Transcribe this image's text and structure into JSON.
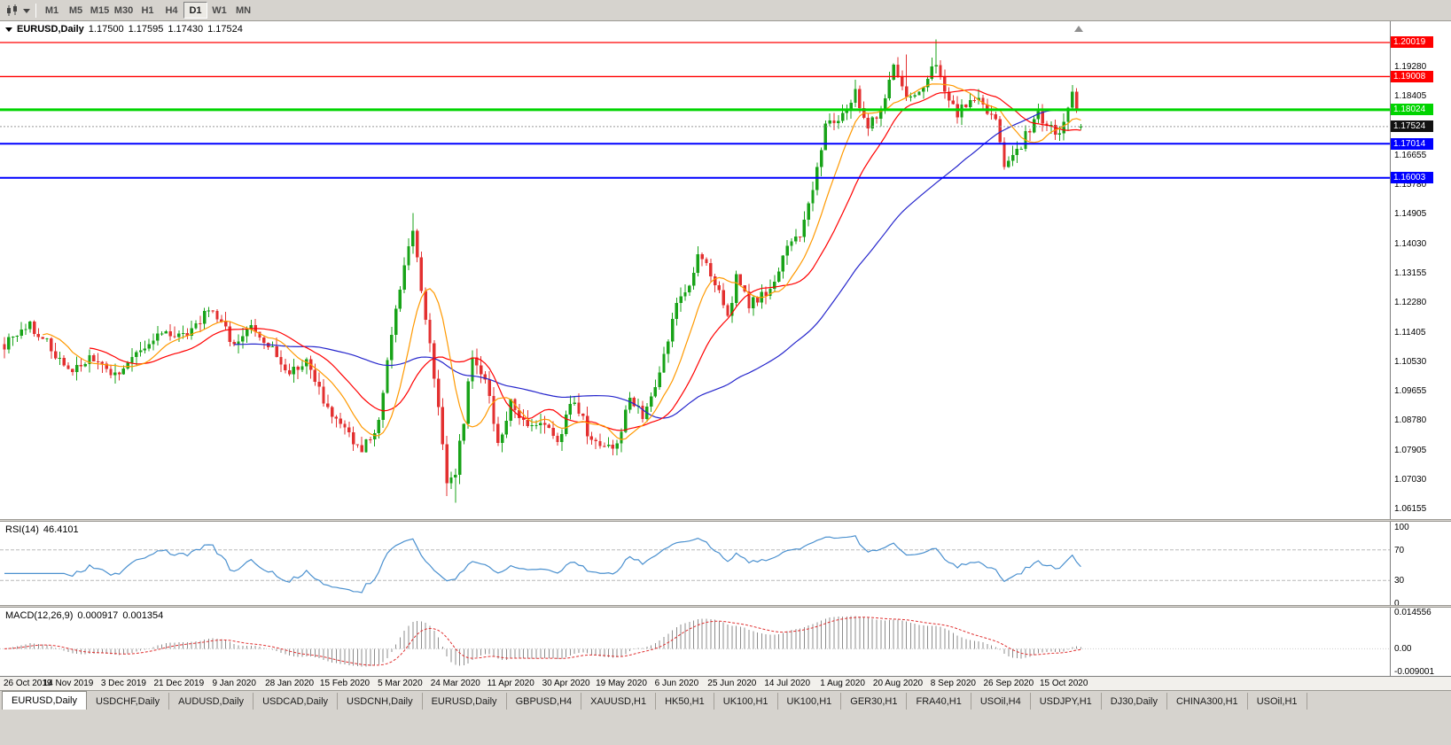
{
  "toolbar": {
    "timeframes": [
      "M1",
      "M5",
      "M15",
      "M30",
      "H1",
      "H4",
      "D1",
      "W1",
      "MN"
    ],
    "active_timeframe": "D1"
  },
  "main_chart": {
    "symbol": "EURUSD,Daily",
    "open": "1.17500",
    "high": "1.17595",
    "low": "1.17430",
    "close": "1.17524",
    "candle_colors": {
      "bull": "#18a318",
      "bear": "#e33030"
    },
    "moving_averages": [
      {
        "period": 55,
        "color": "#2525cc"
      },
      {
        "period": 21,
        "color": "#ff0000"
      },
      {
        "period": 10,
        "color": "#ff9900"
      }
    ],
    "levels": [
      {
        "value": 1.20019,
        "label": "1.20019",
        "color": "#ff0000",
        "width": 1.3
      },
      {
        "value": 1.19008,
        "label": "1.19008",
        "color": "#ff0000",
        "width": 1.3
      },
      {
        "value": 1.18024,
        "label": "1.18024",
        "color": "#00d400",
        "width": 3
      },
      {
        "value": 1.17014,
        "label": "1.17014",
        "color": "#0000ff",
        "width": 2
      },
      {
        "value": 1.16003,
        "label": "1.16003",
        "color": "#0000ff",
        "width": 2
      }
    ],
    "current_price": {
      "value": 1.17524,
      "label": "1.17524",
      "badge": "#111111"
    },
    "price_ticks": [
      "1.19280",
      "1.18405",
      "1.17530",
      "1.16655",
      "1.15780",
      "1.14905",
      "1.14030",
      "1.13155",
      "1.12280",
      "1.11405",
      "1.10530",
      "1.09655",
      "1.08780",
      "1.07905",
      "1.07030",
      "1.06155"
    ]
  },
  "rsi_panel": {
    "label": "RSI(14)",
    "value": "46.4101",
    "axis_labels": [
      "100",
      "70",
      "30",
      "0"
    ],
    "upper_level": 70,
    "lower_level": 30,
    "line_color": "#4a90cf"
  },
  "macd_panel": {
    "label": "MACD(12,26,9)",
    "value1": "0.000917",
    "value2": "0.001354",
    "axis_top": "0.014556",
    "axis_zero": "0.00",
    "axis_bottom": "-0.009001",
    "max": 0.014556,
    "min": -0.009001,
    "histogram_color": "#8c8c8c",
    "signal_color": "#e03030"
  },
  "timeline": [
    "26 Oct 2019",
    "14 Nov 2019",
    "3 Dec 2019",
    "21 Dec 2019",
    "9 Jan 2020",
    "28 Jan 2020",
    "15 Feb 2020",
    "5 Mar 2020",
    "24 Mar 2020",
    "11 Apr 2020",
    "30 Apr 2020",
    "19 May 2020",
    "6 Jun 2020",
    "25 Jun 2020",
    "14 Jul 2020",
    "1 Aug 2020",
    "20 Aug 2020",
    "8 Sep 2020",
    "26 Sep 2020",
    "15 Oct 2020"
  ],
  "tabs": {
    "active_index": 0,
    "items": [
      "EURUSD,Daily",
      "USDCHF,Daily",
      "AUDUSD,Daily",
      "USDCAD,Daily",
      "USDCNH,Daily",
      "EURUSD,Daily",
      "GBPUSD,H4",
      "XAUUSD,H1",
      "HK50,H1",
      "UK100,H1",
      "UK100,H1",
      "GER30,H1",
      "FRA40,H1",
      "USOil,H4",
      "USDJPY,H1",
      "DJ30,Daily",
      "CHINA300,H1",
      "USOil,H1"
    ],
    "active_tab": "EURUSD,Daily"
  },
  "chart_data": {
    "type": "candlestick",
    "symbol": "EURUSD",
    "timeframe": "Daily",
    "title": "EURUSD,Daily 1.17500 1.17595 1.17430 1.17524",
    "last_candle": {
      "open": 1.175,
      "high": 1.17595,
      "low": 1.1743,
      "close": 1.17524
    },
    "visible_range": {
      "price_top": 1.2065,
      "price_bottom": 1.0587,
      "first_label": "26 Oct 2019",
      "last_label": "15 Oct 2020"
    },
    "horizontal_levels": [
      1.20019,
      1.19008,
      1.18024,
      1.17014,
      1.16003
    ],
    "num_candles": 254,
    "label_every_n_candles": 13,
    "first_label_candle": 2,
    "close_anchors": [
      [
        0,
        1.1105
      ],
      [
        6,
        1.1165
      ],
      [
        10,
        1.111
      ],
      [
        15,
        1.1025
      ],
      [
        20,
        1.106
      ],
      [
        26,
        1.1015
      ],
      [
        32,
        1.108
      ],
      [
        38,
        1.115
      ],
      [
        43,
        1.112
      ],
      [
        48,
        1.1215
      ],
      [
        54,
        1.111
      ],
      [
        58,
        1.115
      ],
      [
        63,
        1.1085
      ],
      [
        67,
        1.102
      ],
      [
        71,
        1.106
      ],
      [
        76,
        1.0915
      ],
      [
        80,
        1.085
      ],
      [
        84,
        1.079
      ],
      [
        88,
        1.088
      ],
      [
        91,
        1.113
      ],
      [
        94,
        1.134
      ],
      [
        96,
        1.145
      ],
      [
        98,
        1.127
      ],
      [
        100,
        1.111
      ],
      [
        102,
        1.092
      ],
      [
        104,
        1.07
      ],
      [
        106,
        1.073
      ],
      [
        108,
        1.088
      ],
      [
        110,
        1.108
      ],
      [
        112,
        1.103
      ],
      [
        114,
        1.095
      ],
      [
        116,
        1.08
      ],
      [
        119,
        1.093
      ],
      [
        123,
        1.0875
      ],
      [
        127,
        1.086
      ],
      [
        130,
        1.0825
      ],
      [
        134,
        1.0945
      ],
      [
        137,
        1.0845
      ],
      [
        141,
        1.081
      ],
      [
        144,
        1.0805
      ],
      [
        147,
        1.095
      ],
      [
        150,
        1.09
      ],
      [
        154,
        1.101
      ],
      [
        158,
        1.123
      ],
      [
        161,
        1.129
      ],
      [
        163,
        1.137
      ],
      [
        166,
        1.132
      ],
      [
        170,
        1.1185
      ],
      [
        172,
        1.13
      ],
      [
        175,
        1.122
      ],
      [
        178,
        1.1255
      ],
      [
        181,
        1.128
      ],
      [
        184,
        1.14
      ],
      [
        187,
        1.143
      ],
      [
        190,
        1.157
      ],
      [
        193,
        1.175
      ],
      [
        197,
        1.178
      ],
      [
        200,
        1.186
      ],
      [
        203,
        1.1745
      ],
      [
        206,
        1.181
      ],
      [
        209,
        1.193
      ],
      [
        211,
        1.1865
      ],
      [
        214,
        1.183
      ],
      [
        217,
        1.19
      ],
      [
        219,
        1.1935
      ],
      [
        221,
        1.185
      ],
      [
        224,
        1.1785
      ],
      [
        227,
        1.184
      ],
      [
        230,
        1.1815
      ],
      [
        233,
        1.177
      ],
      [
        235,
        1.164
      ],
      [
        238,
        1.168
      ],
      [
        240,
        1.1725
      ],
      [
        243,
        1.1785
      ],
      [
        246,
        1.176
      ],
      [
        248,
        1.1725
      ],
      [
        250,
        1.1795
      ],
      [
        251,
        1.184
      ],
      [
        252,
        1.18
      ],
      [
        253,
        1.17524
      ]
    ],
    "overrides": [
      {
        "day": 96,
        "high": 1.1495
      },
      {
        "day": 104,
        "low": 1.0655
      },
      {
        "day": 106,
        "low": 1.0636
      },
      {
        "day": 212,
        "high": 1.1966
      },
      {
        "day": 219,
        "high": 1.2011
      },
      {
        "day": 253,
        "open": 1.175,
        "high": 1.17595,
        "low": 1.1743,
        "close": 1.17524
      }
    ],
    "indicators": [
      {
        "type": "sma",
        "period": 10,
        "color": "#ff9900"
      },
      {
        "type": "sma",
        "period": 21,
        "color": "#ff0000"
      },
      {
        "type": "sma",
        "period": 55,
        "color": "#2525cc"
      },
      {
        "type": "rsi",
        "period": 14,
        "current_value": 46.4101,
        "levels": [
          70,
          30
        ],
        "range": [
          0,
          100
        ]
      },
      {
        "type": "macd",
        "fast": 12,
        "slow": 26,
        "signal": 9,
        "current_values": [
          0.000917,
          0.001354
        ],
        "range": [
          -0.009001,
          0.014556
        ]
      }
    ],
    "legend_position": "top-left",
    "grid": false
  }
}
